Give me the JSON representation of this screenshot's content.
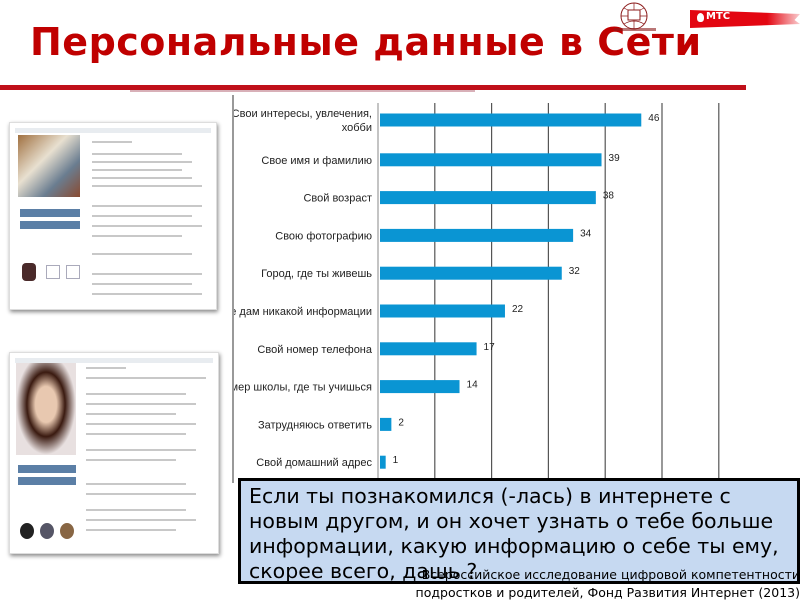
{
  "slide": {
    "title": "Персональные данные в Сети",
    "logo_left": "Фонд Развития Интернет",
    "logo_right": "МТС",
    "accent_color": "#c00000",
    "question": "Если ты познакомился (-лась) в интернете с новым другом, и он хочет узнать о тебе больше информации, какую информацию о себе ты ему, скорее всего, дашь ?",
    "source_line1": "Всероссийское исследование цифровой компетентности",
    "source_line2": "подростков и родителей, Фонд Развития Интернет (2013)"
  },
  "chart_data": {
    "type": "bar",
    "orientation": "horizontal",
    "categories": [
      "Свои интересы, увлечения, хобби",
      "Свое имя и  фамилию",
      "Свой возраст",
      "Свою фотографию",
      "Город, где ты живешь",
      "Не дам никакой информации",
      "Свой номер телефона",
      "Номер школы, где ты учишься",
      "Затрудняюсь ответить",
      "Свой домашний адрес"
    ],
    "values": [
      46,
      39,
      38,
      34,
      32,
      22,
      17,
      14,
      2,
      1
    ],
    "xlim": [
      0,
      60
    ],
    "grid": true,
    "bar_color": "#0a95d3",
    "title": "",
    "xlabel": "",
    "ylabel": ""
  }
}
